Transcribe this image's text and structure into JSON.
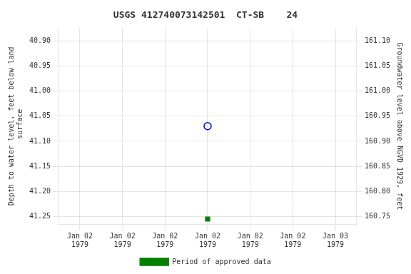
{
  "chart_data": {
    "type": "scatter",
    "title": "USGS 412740073142501  CT-SB    24",
    "ylabel": "Depth to water level, feet below land\n surface",
    "y2label": "Groundwater level above NGVD 1929, feet",
    "xlim": [
      -4,
      52
    ],
    "xticks": [
      {
        "value": 0,
        "label": "Jan 02\n1979"
      },
      {
        "value": 8,
        "label": "Jan 02\n1979"
      },
      {
        "value": 16,
        "label": "Jan 02\n1979"
      },
      {
        "value": 24,
        "label": "Jan 02\n1979"
      },
      {
        "value": 32,
        "label": "Jan 02\n1979"
      },
      {
        "value": 40,
        "label": "Jan 02\n1979"
      },
      {
        "value": 48,
        "label": "Jan 03\n1979"
      }
    ],
    "ylim": [
      41.265,
      40.875
    ],
    "yticks": [
      {
        "value": 40.9,
        "label": "40.90"
      },
      {
        "value": 40.95,
        "label": "40.95"
      },
      {
        "value": 41.0,
        "label": "41.00"
      },
      {
        "value": 41.05,
        "label": "41.05"
      },
      {
        "value": 41.1,
        "label": "41.10"
      },
      {
        "value": 41.15,
        "label": "41.15"
      },
      {
        "value": 41.2,
        "label": "41.20"
      },
      {
        "value": 41.25,
        "label": "41.25"
      }
    ],
    "y2lim": [
      160.735,
      161.125
    ],
    "y2ticks": [
      {
        "value": 161.1,
        "label": "161.10"
      },
      {
        "value": 161.05,
        "label": "161.05"
      },
      {
        "value": 161.0,
        "label": "161.00"
      },
      {
        "value": 160.95,
        "label": "160.95"
      },
      {
        "value": 160.9,
        "label": "160.90"
      },
      {
        "value": 160.85,
        "label": "160.85"
      },
      {
        "value": 160.8,
        "label": "160.80"
      },
      {
        "value": 160.75,
        "label": "160.75"
      }
    ],
    "grid": true,
    "legend": "bottom",
    "series": [
      {
        "color": "#0000cc",
        "marker": "circle_open",
        "x": [
          24
        ],
        "values": [
          41.07
        ]
      },
      {
        "name": "Period of approved data",
        "color": "#008000",
        "marker": "square",
        "x": [
          24
        ],
        "values": [
          41.255
        ]
      }
    ]
  }
}
